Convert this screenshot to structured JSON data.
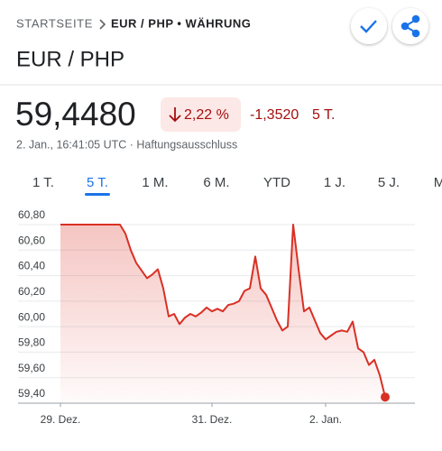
{
  "breadcrumb": {
    "home": "STARTSEITE",
    "current": "EUR / PHP • WÄHRUNG"
  },
  "title": "EUR / PHP",
  "price": "59,4480",
  "change_pct": "2,22 %",
  "change_abs": "-1,3520",
  "change_period": "5 T.",
  "timestamp": "2. Jan., 16:41:05 UTC · Haftungsausschluss",
  "tabs": [
    "1 T.",
    "5 T.",
    "1 M.",
    "6 M.",
    "YTD",
    "1 J.",
    "5 J.",
    "M"
  ],
  "active_tab": 1,
  "chart_data": {
    "type": "area",
    "color": "#d93025",
    "values": [
      60.8,
      60.8,
      60.8,
      60.8,
      60.8,
      60.8,
      60.8,
      60.8,
      60.8,
      60.8,
      60.8,
      60.8,
      60.73,
      60.6,
      60.5,
      60.44,
      60.38,
      60.41,
      60.45,
      60.3,
      60.08,
      60.1,
      60.02,
      60.07,
      60.1,
      60.08,
      60.11,
      60.15,
      60.12,
      60.14,
      60.12,
      60.17,
      60.18,
      60.2,
      60.28,
      60.3,
      60.55,
      60.3,
      60.25,
      60.15,
      60.05,
      59.97,
      60.0,
      60.8,
      60.45,
      60.12,
      60.15,
      60.05,
      59.95,
      59.9,
      59.93,
      59.96,
      59.97,
      59.96,
      60.04,
      59.83,
      59.8,
      59.7,
      59.74,
      59.62,
      59.448
    ],
    "xlim": [
      0,
      60
    ],
    "xticks": [
      {
        "value": 0,
        "label": "29. Dez."
      },
      {
        "value": 28,
        "label": "31. Dez."
      },
      {
        "value": 49,
        "label": "2. Jan."
      }
    ],
    "ylim": [
      59.4,
      60.8
    ],
    "yticks": [
      {
        "value": 59.4,
        "label": "59,40"
      },
      {
        "value": 59.6,
        "label": "59,60"
      },
      {
        "value": 59.8,
        "label": "59,80"
      },
      {
        "value": 60.0,
        "label": "60,00"
      },
      {
        "value": 60.2,
        "label": "60,20"
      },
      {
        "value": 60.4,
        "label": "60,40"
      },
      {
        "value": 60.6,
        "label": "60,60"
      },
      {
        "value": 60.8,
        "label": "60,80"
      }
    ],
    "grid": true
  }
}
